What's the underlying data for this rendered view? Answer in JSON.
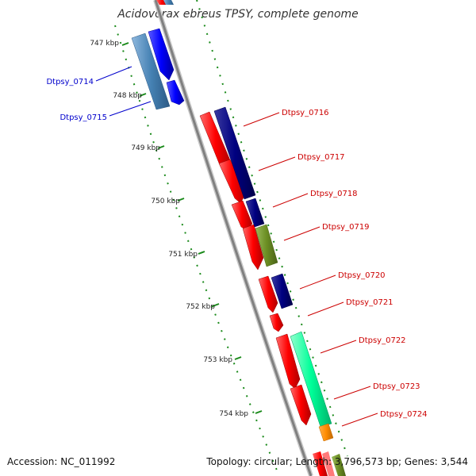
{
  "title": "Acidovorax ebreus TPSY, complete genome",
  "footer": {
    "accession": "Accession: NC_011992",
    "topology": "Topology: circular; Length: 3,796,573 bp; Genes: 3,544"
  },
  "ticks": [
    {
      "label": "747 kbp"
    },
    {
      "label": "748 kbp"
    },
    {
      "label": "749 kbp"
    },
    {
      "label": "750 kbp"
    },
    {
      "label": "751 kbp"
    },
    {
      "label": "752 kbp"
    },
    {
      "label": "753 kbp"
    },
    {
      "label": "754 kbp"
    }
  ],
  "genes": [
    {
      "name": "Dtpsy_0714",
      "color": "#0000cc"
    },
    {
      "name": "Dtpsy_0715",
      "color": "#0000cc"
    },
    {
      "name": "Dtpsy_0716",
      "color": "#cc0000"
    },
    {
      "name": "Dtpsy_0717",
      "color": "#cc0000"
    },
    {
      "name": "Dtpsy_0718",
      "color": "#cc0000"
    },
    {
      "name": "Dtpsy_0719",
      "color": "#cc0000"
    },
    {
      "name": "Dtpsy_0720",
      "color": "#cc0000"
    },
    {
      "name": "Dtpsy_0721",
      "color": "#cc0000"
    },
    {
      "name": "Dtpsy_0722",
      "color": "#cc0000"
    },
    {
      "name": "Dtpsy_0723",
      "color": "#cc0000"
    },
    {
      "name": "Dtpsy_0724",
      "color": "#cc0000"
    }
  ],
  "colors": {
    "backbone": "#888888",
    "tick_green": "#1a8a1a",
    "red_feature": "#ff0000",
    "navy_feature": "#000080",
    "blue_feature": "#0000ff",
    "steel_feature": "#4682b4",
    "olive_feature": "#6b8e23",
    "aqua_feature": "#00ff99",
    "orange_feature": "#ff8c00"
  }
}
